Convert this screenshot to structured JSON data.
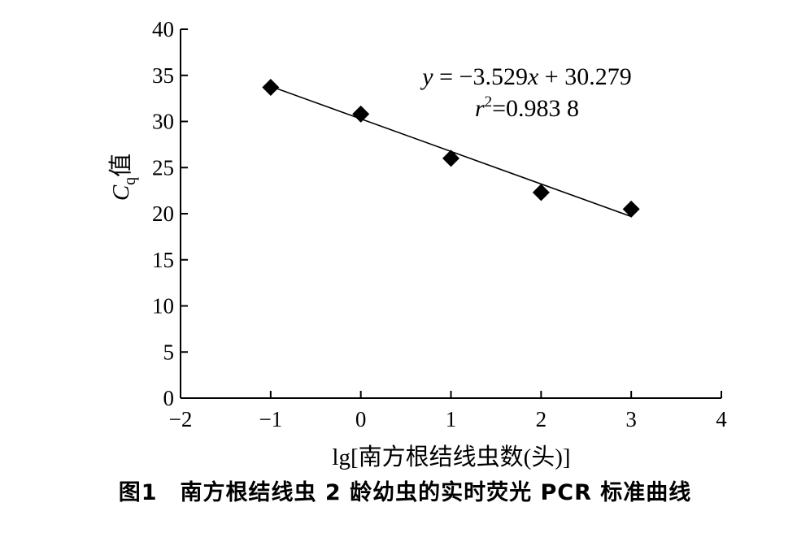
{
  "caption": "图1　南方根结线虫 2 龄幼虫的实时荧光 PCR 标准曲线",
  "chart_data": {
    "type": "scatter",
    "title": "",
    "xlabel": "lg[南方根结线虫数(头)]",
    "ylabel_main": "C",
    "ylabel_sub": "q",
    "ylabel_suffix": "值",
    "xlim": [
      -2,
      4
    ],
    "ylim": [
      0,
      40
    ],
    "xticks": [
      -2,
      -1,
      0,
      1,
      2,
      3,
      4
    ],
    "xtick_labels": [
      "−2",
      "−1",
      "0",
      "1",
      "2",
      "3",
      "4"
    ],
    "yticks": [
      0,
      5,
      10,
      15,
      20,
      25,
      30,
      35,
      40
    ],
    "ytick_labels": [
      "0",
      "5",
      "10",
      "15",
      "20",
      "25",
      "30",
      "35",
      "40"
    ],
    "grid": false,
    "series": [
      {
        "x": [
          -1,
          0,
          1,
          2,
          3
        ],
        "y": [
          33.7,
          30.8,
          26.0,
          22.3,
          20.5
        ],
        "marker": "diamond",
        "color": "#000000"
      }
    ],
    "trendline": {
      "slope": -3.529,
      "intercept": 30.279,
      "x_range": [
        -1,
        3
      ]
    },
    "equation": {
      "y_var": "y",
      "eq_rest": " = −3.529",
      "x_var": "x",
      "eq_tail": " + 30.279",
      "r_var": "r",
      "r_exp": "2",
      "r_value": "=0.983 8"
    }
  }
}
